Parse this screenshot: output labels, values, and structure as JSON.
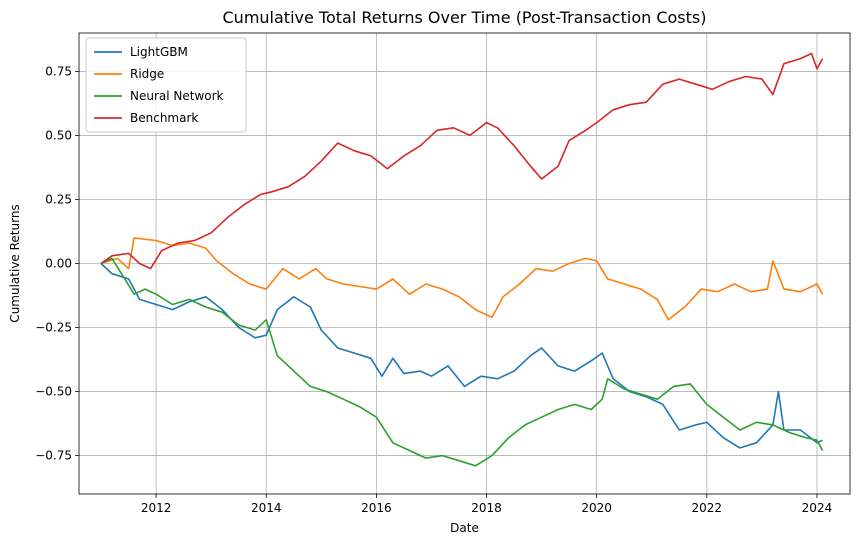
{
  "chart_data": {
    "type": "line",
    "title": "Cumulative Total Returns Over Time (Post-Transaction Costs)",
    "xlabel": "Date",
    "ylabel": "Cumulative Returns",
    "xlim": [
      2010.6,
      2024.6
    ],
    "ylim": [
      -0.9,
      0.9
    ],
    "x_ticks": [
      2012,
      2014,
      2016,
      2018,
      2020,
      2022,
      2024
    ],
    "x_tick_labels": [
      "2012",
      "2014",
      "2016",
      "2018",
      "2020",
      "2022",
      "2024"
    ],
    "y_ticks": [
      -0.75,
      -0.5,
      -0.25,
      0.0,
      0.25,
      0.5,
      0.75
    ],
    "y_tick_labels": [
      "−0.75",
      "−0.50",
      "−0.25",
      "0.00",
      "0.25",
      "0.50",
      "0.75"
    ],
    "grid": true,
    "legend_position": "upper-left",
    "series": [
      {
        "name": "LightGBM",
        "color": "#1f77b4",
        "points": [
          [
            2011.0,
            0.0
          ],
          [
            2011.2,
            -0.04
          ],
          [
            2011.5,
            -0.06
          ],
          [
            2011.7,
            -0.14
          ],
          [
            2012.0,
            -0.16
          ],
          [
            2012.3,
            -0.18
          ],
          [
            2012.6,
            -0.15
          ],
          [
            2012.9,
            -0.13
          ],
          [
            2013.2,
            -0.18
          ],
          [
            2013.5,
            -0.25
          ],
          [
            2013.8,
            -0.29
          ],
          [
            2014.0,
            -0.28
          ],
          [
            2014.2,
            -0.18
          ],
          [
            2014.5,
            -0.13
          ],
          [
            2014.8,
            -0.17
          ],
          [
            2015.0,
            -0.26
          ],
          [
            2015.3,
            -0.33
          ],
          [
            2015.6,
            -0.35
          ],
          [
            2015.9,
            -0.37
          ],
          [
            2016.1,
            -0.44
          ],
          [
            2016.3,
            -0.37
          ],
          [
            2016.5,
            -0.43
          ],
          [
            2016.8,
            -0.42
          ],
          [
            2017.0,
            -0.44
          ],
          [
            2017.3,
            -0.4
          ],
          [
            2017.6,
            -0.48
          ],
          [
            2017.9,
            -0.44
          ],
          [
            2018.2,
            -0.45
          ],
          [
            2018.5,
            -0.42
          ],
          [
            2018.8,
            -0.36
          ],
          [
            2019.0,
            -0.33
          ],
          [
            2019.3,
            -0.4
          ],
          [
            2019.6,
            -0.42
          ],
          [
            2019.9,
            -0.38
          ],
          [
            2020.1,
            -0.35
          ],
          [
            2020.3,
            -0.45
          ],
          [
            2020.6,
            -0.5
          ],
          [
            2020.9,
            -0.52
          ],
          [
            2021.2,
            -0.55
          ],
          [
            2021.5,
            -0.65
          ],
          [
            2021.8,
            -0.63
          ],
          [
            2022.0,
            -0.62
          ],
          [
            2022.3,
            -0.68
          ],
          [
            2022.6,
            -0.72
          ],
          [
            2022.9,
            -0.7
          ],
          [
            2023.2,
            -0.63
          ],
          [
            2023.3,
            -0.5
          ],
          [
            2023.4,
            -0.65
          ],
          [
            2023.7,
            -0.65
          ],
          [
            2024.0,
            -0.7
          ],
          [
            2024.1,
            -0.69
          ]
        ]
      },
      {
        "name": "Ridge",
        "color": "#ff7f0e",
        "points": [
          [
            2011.0,
            0.0
          ],
          [
            2011.3,
            0.02
          ],
          [
            2011.5,
            -0.02
          ],
          [
            2011.6,
            0.1
          ],
          [
            2012.0,
            0.09
          ],
          [
            2012.3,
            0.07
          ],
          [
            2012.6,
            0.08
          ],
          [
            2012.9,
            0.06
          ],
          [
            2013.1,
            0.01
          ],
          [
            2013.4,
            -0.04
          ],
          [
            2013.7,
            -0.08
          ],
          [
            2014.0,
            -0.1
          ],
          [
            2014.3,
            -0.02
          ],
          [
            2014.6,
            -0.06
          ],
          [
            2014.9,
            -0.02
          ],
          [
            2015.1,
            -0.06
          ],
          [
            2015.4,
            -0.08
          ],
          [
            2015.7,
            -0.09
          ],
          [
            2016.0,
            -0.1
          ],
          [
            2016.3,
            -0.06
          ],
          [
            2016.6,
            -0.12
          ],
          [
            2016.9,
            -0.08
          ],
          [
            2017.2,
            -0.1
          ],
          [
            2017.5,
            -0.13
          ],
          [
            2017.8,
            -0.18
          ],
          [
            2018.1,
            -0.21
          ],
          [
            2018.3,
            -0.13
          ],
          [
            2018.6,
            -0.08
          ],
          [
            2018.9,
            -0.02
          ],
          [
            2019.2,
            -0.03
          ],
          [
            2019.5,
            0.0
          ],
          [
            2019.8,
            0.02
          ],
          [
            2020.0,
            0.01
          ],
          [
            2020.2,
            -0.06
          ],
          [
            2020.5,
            -0.08
          ],
          [
            2020.8,
            -0.1
          ],
          [
            2021.1,
            -0.14
          ],
          [
            2021.3,
            -0.22
          ],
          [
            2021.6,
            -0.17
          ],
          [
            2021.9,
            -0.1
          ],
          [
            2022.2,
            -0.11
          ],
          [
            2022.5,
            -0.08
          ],
          [
            2022.8,
            -0.11
          ],
          [
            2023.1,
            -0.1
          ],
          [
            2023.2,
            0.01
          ],
          [
            2023.4,
            -0.1
          ],
          [
            2023.7,
            -0.11
          ],
          [
            2024.0,
            -0.08
          ],
          [
            2024.1,
            -0.12
          ]
        ]
      },
      {
        "name": "Neural Network",
        "color": "#2ca02c",
        "points": [
          [
            2011.0,
            0.0
          ],
          [
            2011.2,
            0.02
          ],
          [
            2011.4,
            -0.05
          ],
          [
            2011.6,
            -0.12
          ],
          [
            2011.8,
            -0.1
          ],
          [
            2012.0,
            -0.12
          ],
          [
            2012.3,
            -0.16
          ],
          [
            2012.6,
            -0.14
          ],
          [
            2012.9,
            -0.17
          ],
          [
            2013.2,
            -0.19
          ],
          [
            2013.5,
            -0.24
          ],
          [
            2013.8,
            -0.26
          ],
          [
            2014.0,
            -0.22
          ],
          [
            2014.2,
            -0.36
          ],
          [
            2014.5,
            -0.42
          ],
          [
            2014.8,
            -0.48
          ],
          [
            2015.1,
            -0.5
          ],
          [
            2015.4,
            -0.53
          ],
          [
            2015.7,
            -0.56
          ],
          [
            2016.0,
            -0.6
          ],
          [
            2016.3,
            -0.7
          ],
          [
            2016.6,
            -0.73
          ],
          [
            2016.9,
            -0.76
          ],
          [
            2017.2,
            -0.75
          ],
          [
            2017.5,
            -0.77
          ],
          [
            2017.8,
            -0.79
          ],
          [
            2018.1,
            -0.75
          ],
          [
            2018.4,
            -0.68
          ],
          [
            2018.7,
            -0.63
          ],
          [
            2019.0,
            -0.6
          ],
          [
            2019.3,
            -0.57
          ],
          [
            2019.6,
            -0.55
          ],
          [
            2019.9,
            -0.57
          ],
          [
            2020.1,
            -0.53
          ],
          [
            2020.2,
            -0.45
          ],
          [
            2020.5,
            -0.49
          ],
          [
            2020.8,
            -0.51
          ],
          [
            2021.1,
            -0.53
          ],
          [
            2021.4,
            -0.48
          ],
          [
            2021.7,
            -0.47
          ],
          [
            2022.0,
            -0.55
          ],
          [
            2022.3,
            -0.6
          ],
          [
            2022.6,
            -0.65
          ],
          [
            2022.9,
            -0.62
          ],
          [
            2023.2,
            -0.63
          ],
          [
            2023.5,
            -0.66
          ],
          [
            2023.8,
            -0.68
          ],
          [
            2024.0,
            -0.69
          ],
          [
            2024.1,
            -0.73
          ]
        ]
      },
      {
        "name": "Benchmark",
        "color": "#d62728",
        "points": [
          [
            2011.0,
            0.0
          ],
          [
            2011.2,
            0.03
          ],
          [
            2011.5,
            0.04
          ],
          [
            2011.7,
            0.0
          ],
          [
            2011.9,
            -0.02
          ],
          [
            2012.1,
            0.05
          ],
          [
            2012.4,
            0.08
          ],
          [
            2012.7,
            0.09
          ],
          [
            2013.0,
            0.12
          ],
          [
            2013.3,
            0.18
          ],
          [
            2013.6,
            0.23
          ],
          [
            2013.9,
            0.27
          ],
          [
            2014.1,
            0.28
          ],
          [
            2014.4,
            0.3
          ],
          [
            2014.7,
            0.34
          ],
          [
            2015.0,
            0.4
          ],
          [
            2015.3,
            0.47
          ],
          [
            2015.6,
            0.44
          ],
          [
            2015.9,
            0.42
          ],
          [
            2016.2,
            0.37
          ],
          [
            2016.5,
            0.42
          ],
          [
            2016.8,
            0.46
          ],
          [
            2017.1,
            0.52
          ],
          [
            2017.4,
            0.53
          ],
          [
            2017.7,
            0.5
          ],
          [
            2018.0,
            0.55
          ],
          [
            2018.2,
            0.53
          ],
          [
            2018.5,
            0.46
          ],
          [
            2018.8,
            0.38
          ],
          [
            2019.0,
            0.33
          ],
          [
            2019.3,
            0.38
          ],
          [
            2019.5,
            0.48
          ],
          [
            2019.8,
            0.52
          ],
          [
            2020.0,
            0.55
          ],
          [
            2020.3,
            0.6
          ],
          [
            2020.6,
            0.62
          ],
          [
            2020.9,
            0.63
          ],
          [
            2021.2,
            0.7
          ],
          [
            2021.5,
            0.72
          ],
          [
            2021.8,
            0.7
          ],
          [
            2022.1,
            0.68
          ],
          [
            2022.4,
            0.71
          ],
          [
            2022.7,
            0.73
          ],
          [
            2023.0,
            0.72
          ],
          [
            2023.2,
            0.66
          ],
          [
            2023.4,
            0.78
          ],
          [
            2023.7,
            0.8
          ],
          [
            2023.9,
            0.82
          ],
          [
            2024.0,
            0.76
          ],
          [
            2024.1,
            0.8
          ]
        ]
      }
    ]
  }
}
